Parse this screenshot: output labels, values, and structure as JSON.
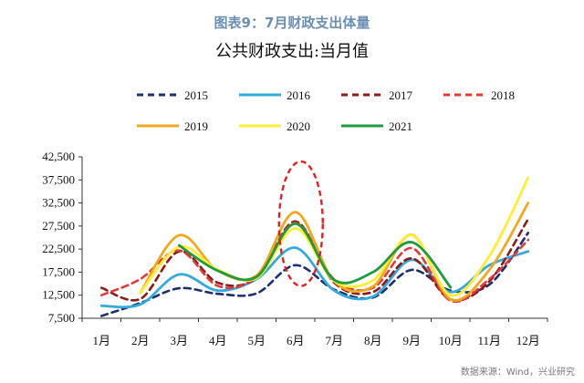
{
  "header": {
    "figure_caption": "图表9：7月财政支出体量",
    "chart_title": "公共财政支出:当月值"
  },
  "source": "数据来源：Wind，兴业研究",
  "chart_data": {
    "type": "line",
    "title": "公共财政支出:当月值",
    "categories": [
      "1月",
      "2月",
      "3月",
      "4月",
      "5月",
      "6月",
      "7月",
      "8月",
      "9月",
      "10月",
      "11月",
      "12月"
    ],
    "y_ticks": [
      "7,500",
      "12,500",
      "17,500",
      "22,500",
      "27,500",
      "32,500",
      "37,500",
      "42,500"
    ],
    "ylim": [
      7500,
      42500
    ],
    "grid": false,
    "legend_position": "top",
    "series": [
      {
        "name": "2015",
        "color": "#1f2f6e",
        "dash": "dashed",
        "values": [
          8000,
          10800,
          14000,
          12800,
          12900,
          19000,
          13700,
          12000,
          18000,
          13500,
          14800,
          26000
        ]
      },
      {
        "name": "2016",
        "color": "#33a9dc",
        "dash": "solid",
        "values": [
          10200,
          10500,
          17000,
          13500,
          16000,
          22800,
          13500,
          12200,
          20200,
          13200,
          19000,
          22000
        ]
      },
      {
        "name": "2017",
        "color": "#8b1a1a",
        "dash": "dashed",
        "values": [
          14100,
          11700,
          22000,
          15200,
          16300,
          28500,
          15200,
          13200,
          20500,
          11600,
          15500,
          29000
        ]
      },
      {
        "name": "2018",
        "color": "#e03a3a",
        "dash": "dashed",
        "values": [
          12500,
          16000,
          22200,
          14500,
          16500,
          28200,
          15900,
          14100,
          22700,
          11300,
          16000,
          24500
        ]
      },
      {
        "name": "2019",
        "color": "#f0a91e",
        "dash": "solid",
        "values": [
          null,
          13000,
          25500,
          17800,
          16800,
          30500,
          15500,
          14400,
          25600,
          11600,
          18000,
          32500
        ]
      },
      {
        "name": "2020",
        "color": "#ffee33",
        "dash": "solid",
        "values": [
          null,
          13000,
          23000,
          18000,
          16200,
          27000,
          15600,
          15700,
          25500,
          12500,
          21000,
          38000
        ]
      },
      {
        "name": "2021",
        "color": "#1e9b3e",
        "dash": "solid",
        "values": [
          null,
          null,
          23300,
          17800,
          16500,
          28000,
          15800,
          17500,
          24000,
          14200,
          null,
          null
        ]
      }
    ],
    "annotation": {
      "type": "ellipse",
      "color": "#e02020",
      "dash": "dashed",
      "x_category": "6月",
      "y_range": [
        14500,
        41500
      ]
    }
  }
}
